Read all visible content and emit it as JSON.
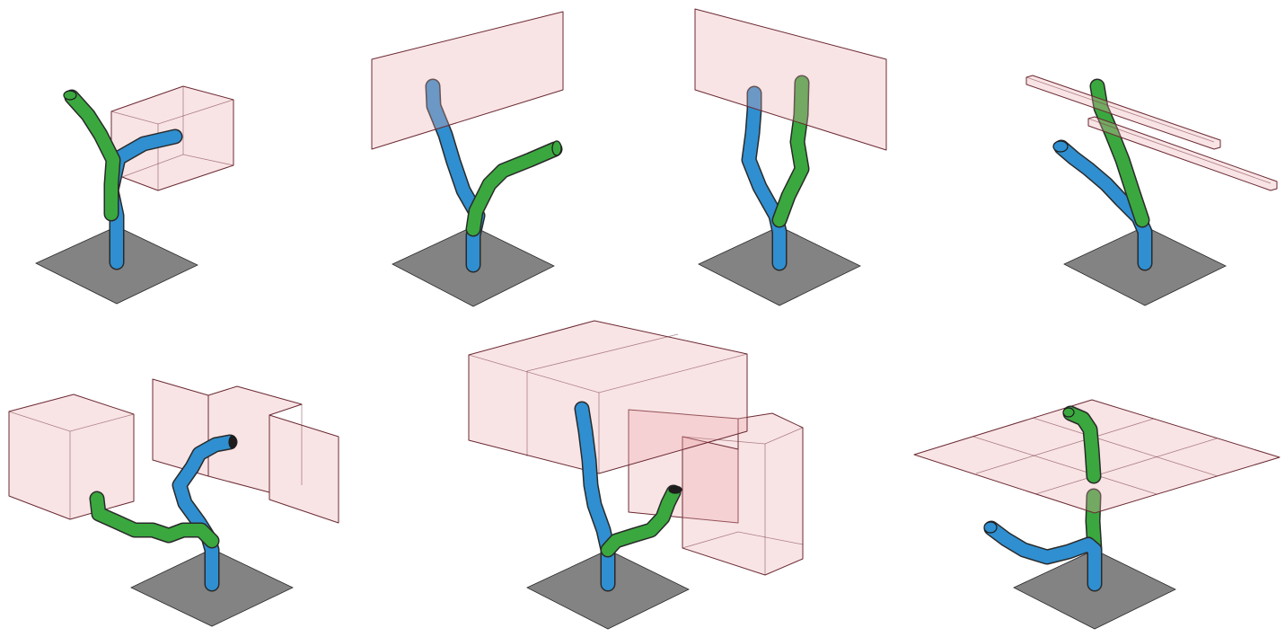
{
  "colors": {
    "start_arm": "#2f8fd0",
    "goal_arm": "#3aa83e",
    "obstacle_fill": "#efb9bd",
    "obstacle_edge": "#6b2a33",
    "base_plate": "#838383",
    "background": "#ffffff"
  },
  "panels": [
    {
      "id": "panel-1",
      "obstacle": "box"
    },
    {
      "id": "panel-2",
      "obstacle": "wall"
    },
    {
      "id": "panel-3",
      "obstacle": "wall"
    },
    {
      "id": "panel-4",
      "obstacle": "bars"
    },
    {
      "id": "panel-5",
      "obstacle": "box-and-shelf"
    },
    {
      "id": "panel-6",
      "obstacle": "large-box-and-frame"
    },
    {
      "id": "panel-7",
      "obstacle": "tiled-plane"
    }
  ]
}
